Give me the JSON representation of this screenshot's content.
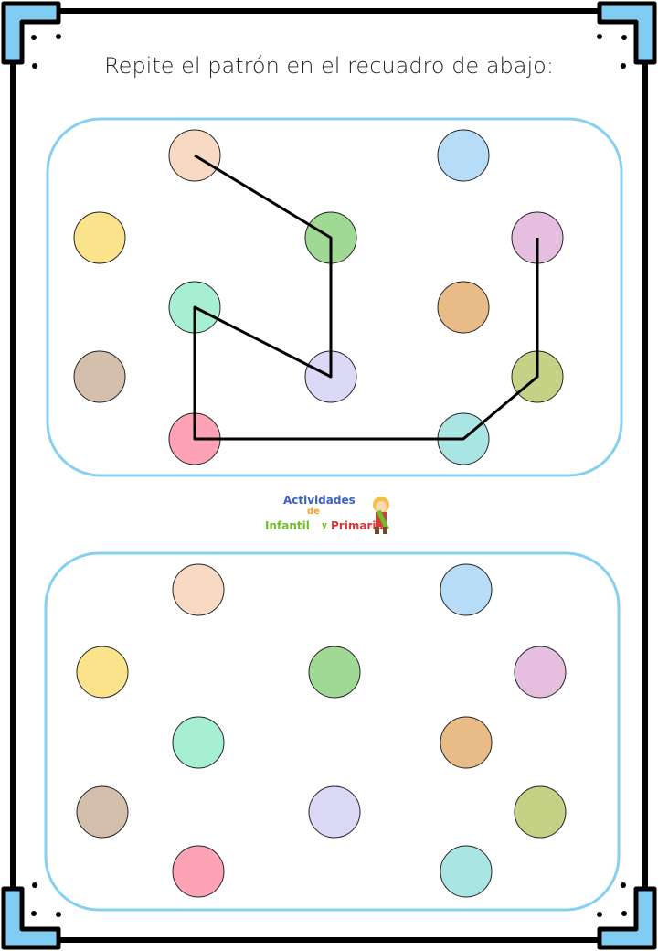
{
  "title": "Repite el patrón en el recuadro de abajo:",
  "logo": {
    "line1": "Actividades",
    "line2": "de",
    "line3": "Infantil",
    "line4": "y",
    "line5": "Primaria"
  },
  "colors": {
    "frame": "#000000",
    "corner": "#7fcdf3",
    "panel_border": "#87d0f0",
    "line": "#000000"
  },
  "dots": [
    {
      "name": "peach",
      "color": "#f7d9c4"
    },
    {
      "name": "blue",
      "color": "#b6dcf7"
    },
    {
      "name": "yellow",
      "color": "#fae38a"
    },
    {
      "name": "green",
      "color": "#a0d994"
    },
    {
      "name": "pink",
      "color": "#e6bfe0"
    },
    {
      "name": "mint",
      "color": "#a6efd3"
    },
    {
      "name": "orange",
      "color": "#e8bb87"
    },
    {
      "name": "brown",
      "color": "#d4bfad"
    },
    {
      "name": "lavender",
      "color": "#dcd9f7"
    },
    {
      "name": "olive",
      "color": "#c5d184"
    },
    {
      "name": "rose",
      "color": "#fda3b5"
    },
    {
      "name": "teal",
      "color": "#a9e6e3"
    }
  ],
  "pattern_sequence": [
    "peach",
    "green",
    "lavender",
    "mint",
    "rose",
    "teal",
    "olive",
    "pink"
  ]
}
